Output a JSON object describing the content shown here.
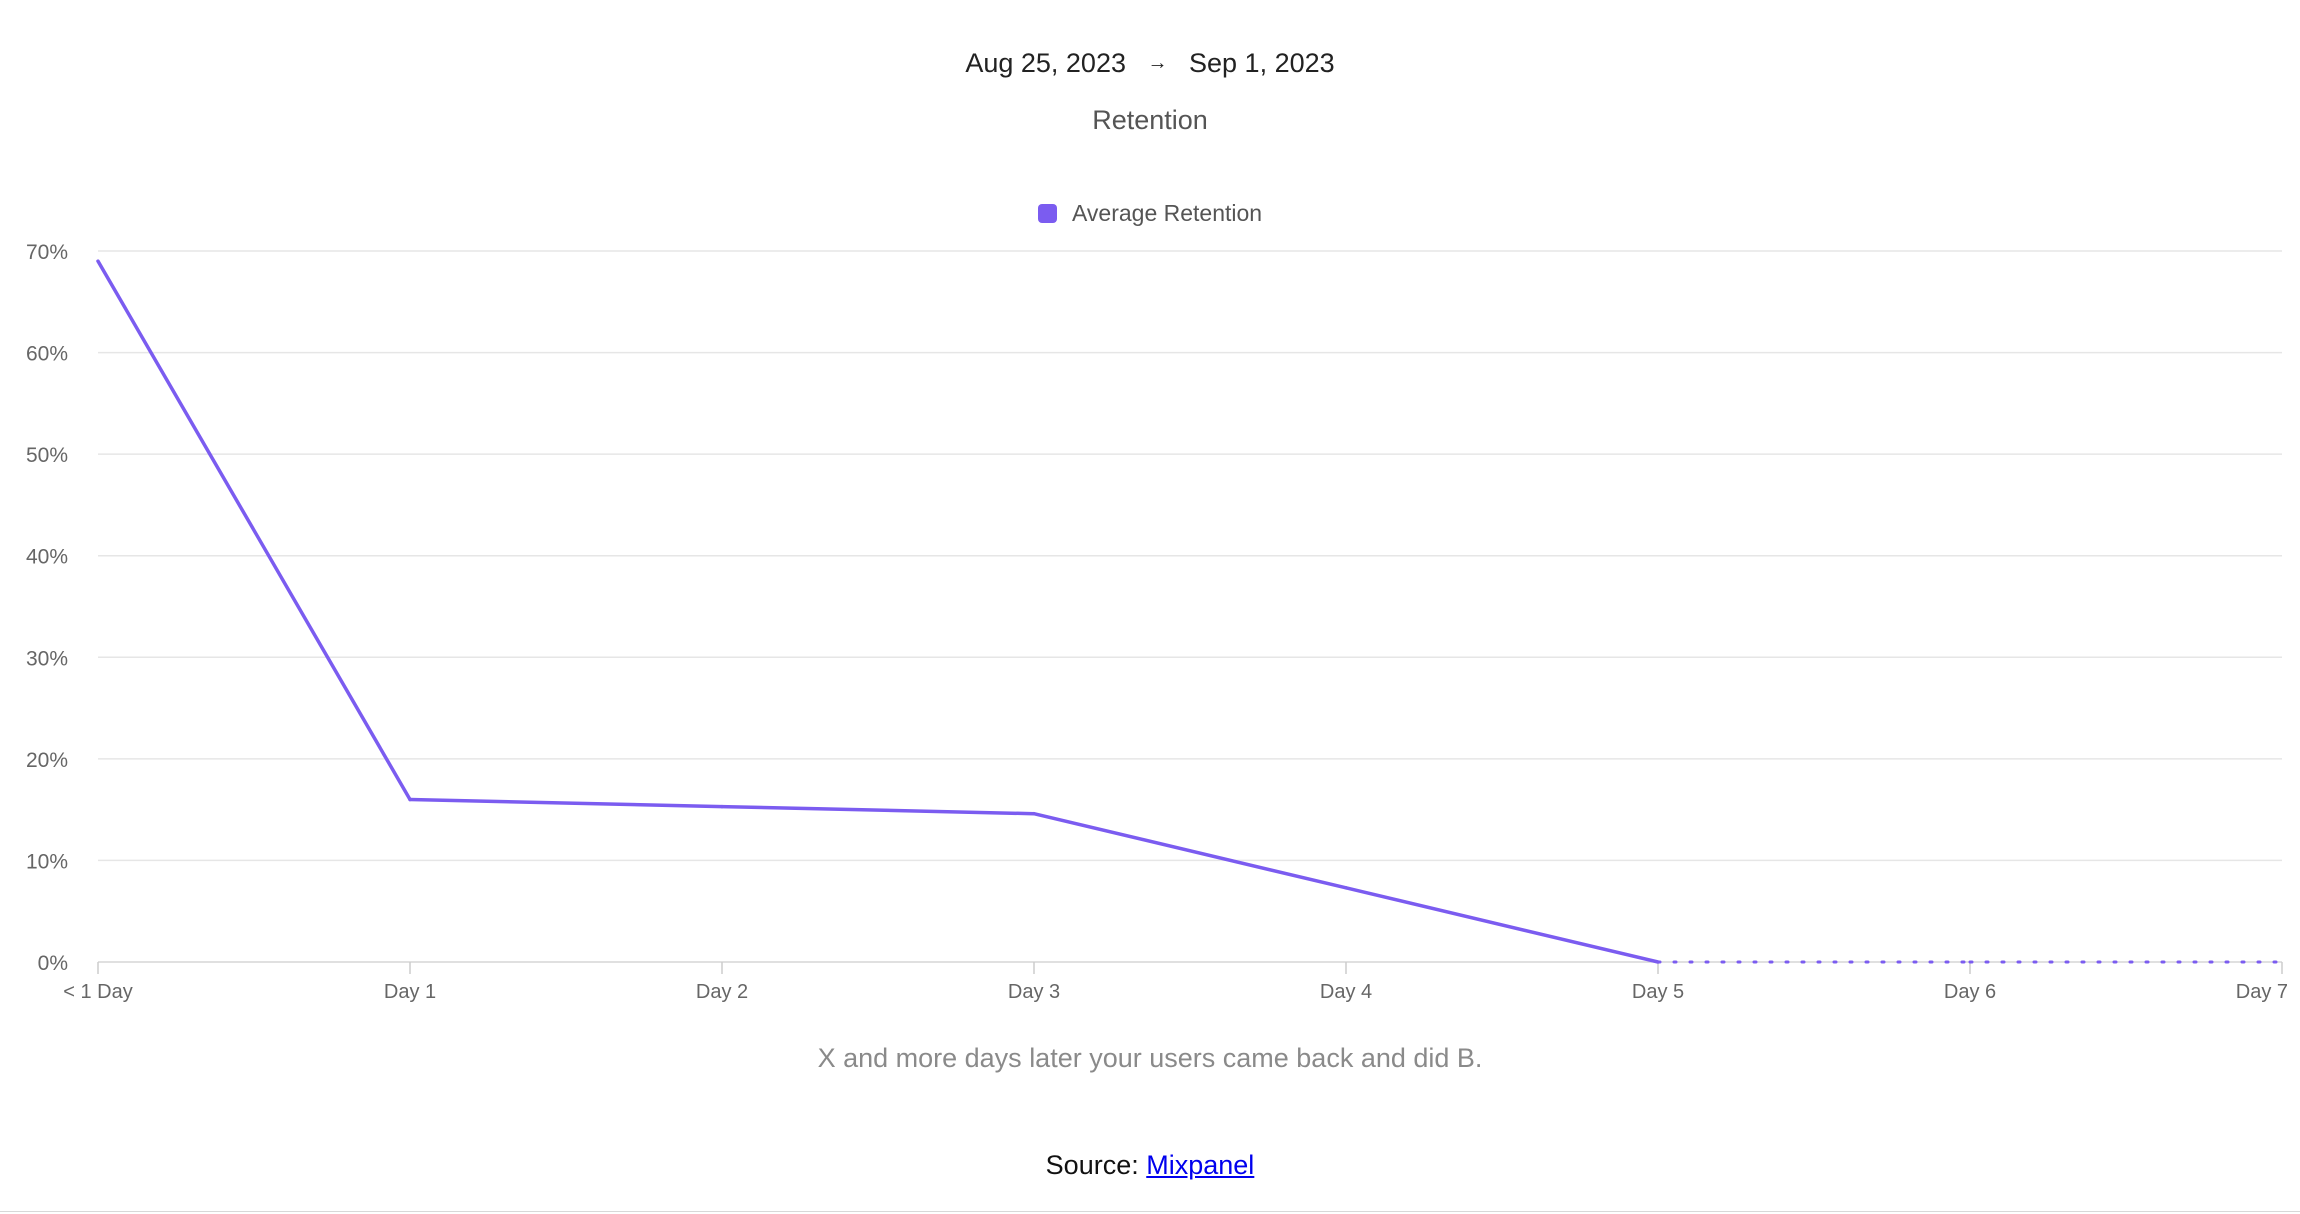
{
  "header": {
    "date_start": "Aug 25, 2023",
    "date_arrow": "→",
    "date_end": "Sep 1, 2023"
  },
  "footer": {
    "caption": "X and more days later your users came back and did B.",
    "source_label": "Source:",
    "source_link": "Mixpanel"
  },
  "chart_data": {
    "type": "line",
    "title": "Retention",
    "xlabel": "",
    "ylabel": "",
    "categories": [
      "< 1 Day",
      "Day 1",
      "Day 2",
      "Day 3",
      "Day 4",
      "Day 5",
      "Day 6",
      "Day 7"
    ],
    "series": [
      {
        "name": "Average Retention",
        "color": "#7b5cf0",
        "values": [
          69,
          16,
          null,
          14.6,
          null,
          0,
          0,
          0
        ],
        "segment_styles": [
          "solid",
          "solid",
          "solid",
          "solid",
          "solid",
          "dotted",
          "dotted"
        ]
      }
    ],
    "y_ticks": [
      0,
      10,
      20,
      30,
      40,
      50,
      60,
      70
    ],
    "y_tick_labels": [
      "0%",
      "10%",
      "20%",
      "30%",
      "40%",
      "50%",
      "60%",
      "70%"
    ],
    "ylim": [
      0,
      70
    ],
    "grid": true,
    "legend_position": "top-center"
  }
}
